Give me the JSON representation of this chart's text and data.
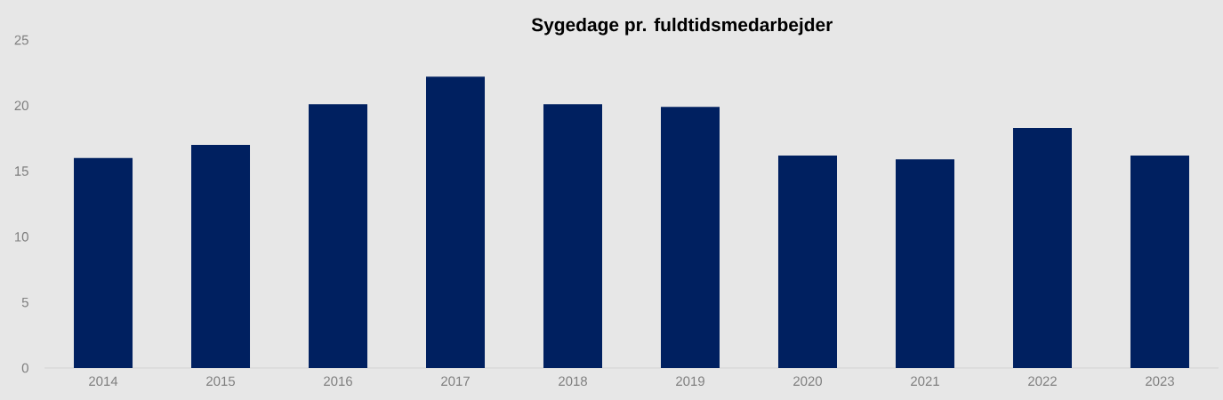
{
  "chart_data": {
    "type": "bar",
    "title": "Sygedage pr. fuldtidsmedarbejder",
    "categories": [
      "2014",
      "2015",
      "2016",
      "2017",
      "2018",
      "2019",
      "2020",
      "2021",
      "2022",
      "2023"
    ],
    "values": [
      16.0,
      17.0,
      20.1,
      22.2,
      20.1,
      19.9,
      16.2,
      15.9,
      18.3,
      16.2
    ],
    "color": "#002060",
    "ylim": [
      0,
      25
    ],
    "yticks": [
      0,
      5,
      10,
      15,
      20,
      25
    ],
    "grid": false
  }
}
